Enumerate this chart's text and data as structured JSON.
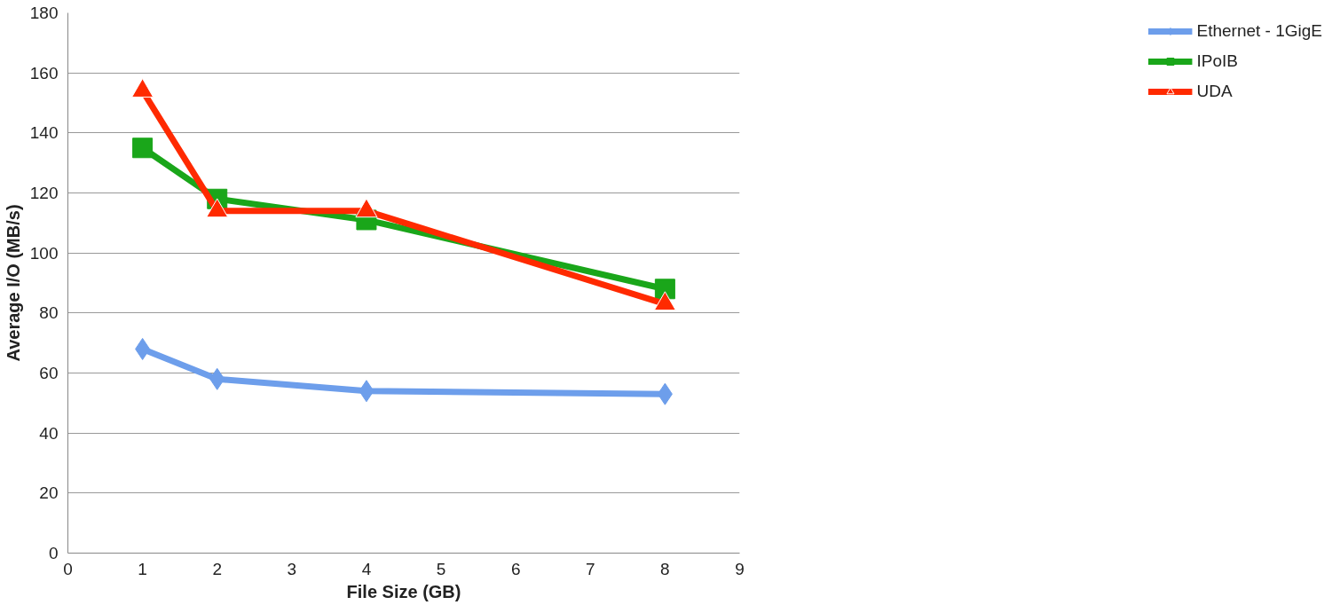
{
  "chart_data": {
    "type": "line",
    "xlabel": "File Size (GB)",
    "ylabel": "Average I/O (MB/s)",
    "x": [
      1,
      2,
      4,
      8
    ],
    "series": [
      {
        "name": "Ethernet - 1GigE",
        "color": "#6d9eeb",
        "values": [
          68,
          58,
          54,
          53
        ],
        "marker": "diamond"
      },
      {
        "name": "IPoIB",
        "color": "#1aa61a",
        "values": [
          135,
          118,
          111,
          88
        ],
        "marker": "square"
      },
      {
        "name": "UDA",
        "color": "#ff2a00",
        "values": [
          154,
          114,
          114,
          83
        ],
        "marker": "triangle"
      }
    ],
    "xlim": [
      0,
      9
    ],
    "xticks": [
      0,
      1,
      2,
      3,
      4,
      5,
      6,
      7,
      8,
      9
    ],
    "ylim": [
      0,
      180
    ],
    "yticks": [
      0,
      20,
      40,
      60,
      80,
      100,
      120,
      140,
      160,
      180
    ],
    "grid": "y",
    "legend": "right",
    "line_style": "solid"
  }
}
